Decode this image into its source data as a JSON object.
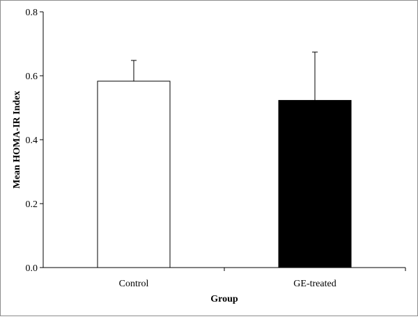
{
  "chart_data": {
    "type": "bar",
    "title": "",
    "xlabel": "Group",
    "ylabel": "Mean HOMA-IR Index",
    "categories": [
      "Control",
      "GE-treated"
    ],
    "values": [
      0.583,
      0.523
    ],
    "error_upper": [
      0.065,
      0.151
    ],
    "bar_fill": [
      "#ffffff",
      "#000000"
    ],
    "bar_stroke": "#000000",
    "ylim": [
      0,
      0.8
    ],
    "yticks": [
      "0.0",
      "0.2",
      "0.4",
      "0.6",
      "0.8"
    ],
    "ytick_values": [
      0,
      0.2,
      0.4,
      0.6,
      0.8
    ],
    "grid": false,
    "legend": "none"
  }
}
